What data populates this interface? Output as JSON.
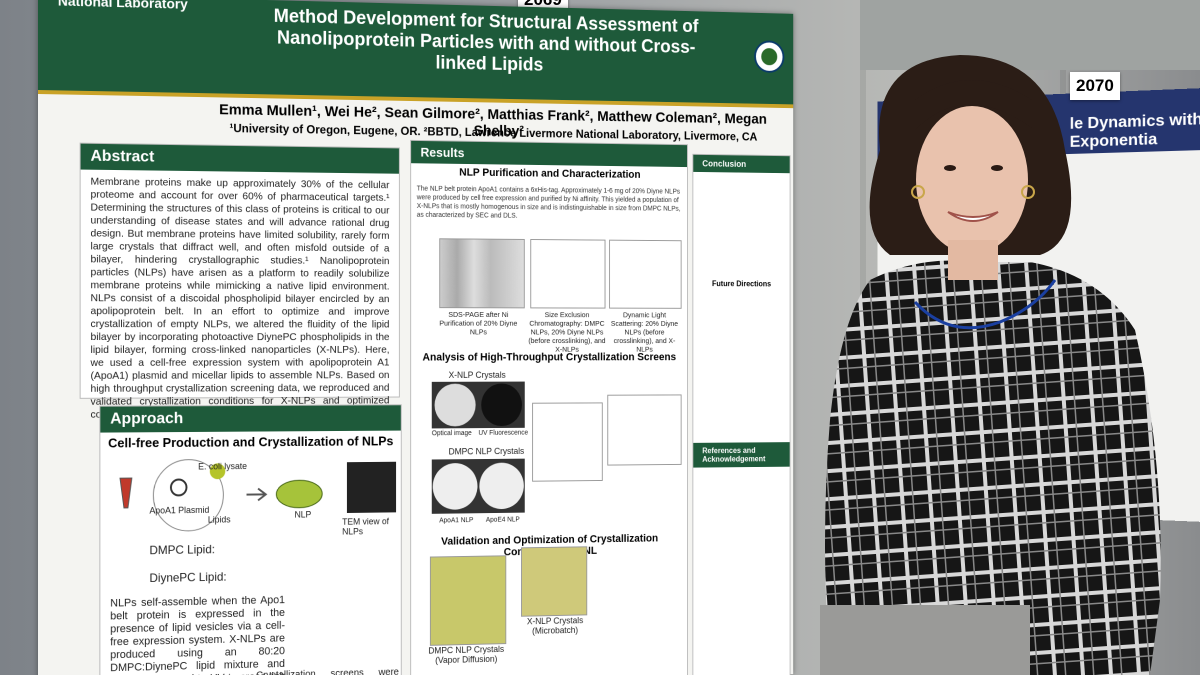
{
  "poster": {
    "lab": "National Laboratory",
    "booth_left": "2069",
    "title": "Method Development for Structural Assessment of Nanolipoprotein Particles with and without Cross-linked Lipids",
    "authors": "Emma Mullen¹, Wei He², Sean Gilmore², Matthias Frank², Matthew Coleman², Megan Shelby²",
    "affiliations": "¹University of Oregon, Eugene, OR. ²BBTD, Lawrence Livermore National Laboratory, Livermore, CA",
    "abstract": {
      "heading": "Abstract",
      "text": "Membrane proteins make up approximately 30% of the cellular proteome and account for over 60% of pharmaceutical targets.¹ Determining the structures of this class of proteins is critical to our understanding of disease states and will advance rational drug design. But membrane proteins have limited solubility, rarely form large crystals that diffract well, and often misfold outside of a bilayer, hindering crystallographic studies.¹ Nanolipoprotein particles (NLPs) have arisen as a platform to readily solubilize membrane proteins while mimicking a native lipid environment. NLPs consist of a discoidal phospholipid bilayer encircled by an apolipoprotein belt. In an effort to optimize and improve crystallization of empty NLPs, we altered the fluidity of the lipid bilayer by incorporating photoactive DiynePC phospholipids in the lipid bilayer, forming cross-linked nanoparticles (X-NLPs). Here, we used a cell-free expression system with apolipoprotein A1 (ApoA1) plasmid and micellar lipids to assemble NLPs. Based on high throughput crystallization screening data, we reproduced and validated crystallization conditions for X-NLPs and optimized conditions for non-crosslinked NLPs (DMPC NLPs)."
    },
    "approach": {
      "heading": "Approach",
      "subheading": "Cell-free Production and Crystallization of NLPs",
      "labels": [
        "E. coli lysate",
        "ApoA1 Plasmid",
        "Lipids",
        "NLP",
        "TEM view of NLPs",
        "DMPC Lipid:",
        "DiynePC Lipid:"
      ],
      "text": "NLPs self-assemble when the Apo1 belt protein is expressed in the presence of lipid vesicles via a cell-free expression system. X-NLPs are produced using an 80:20 DMPC:DiynePC lipid mixture and are then exposed to UV to cross-link the lipids.",
      "text2": "Crystallization screens were performed"
    },
    "results": {
      "heading": "Results",
      "sub1": "NLP Purification and Characterization",
      "text1": "The NLP belt protein ApoA1 contains a 6xHis-tag. Approximately 1-6 mg of 20% Diyne NLPs were produced by cell free expression and purified by Ni affinity. This yielded a population of X-NLPs that is mostly homogenous in size and is indistinguishable in size from DMPC NLPs, as characterized by SEC and DLS.",
      "captions": [
        "SDS-PAGE after Ni Purification of 20% Diyne NLPs",
        "Size Exclusion Chromatography: DMPC NLPs, 20% Diyne NLPs (before crosslinking), and X-NLPs",
        "Dynamic Light Scattering: 20% Diyne NLPs (before crosslinking), and X-NLPs"
      ],
      "sub2": "Analysis of High-Throughput Crystallization Screens",
      "crystal_labels": [
        "X-NLP Crystals",
        "Optical image",
        "UV Fluorescence",
        "DMPC NLP Crystals",
        "ApoA1 NLP",
        "ApoE4 NLP"
      ],
      "sub3": "Validation and Optimization of Crystallization Conditions at LLNL",
      "bottom_captions": [
        "DMPC NLP Crystals (Vapor Diffusion)",
        "X-NLP Crystals (Microbatch)"
      ]
    },
    "right": {
      "conclusion": "Conclusion",
      "future": "Future Directions",
      "references": "References and Acknowledgement"
    }
  },
  "second_poster": {
    "booth": "2070",
    "title": "le Dynamics with Exponentia"
  }
}
